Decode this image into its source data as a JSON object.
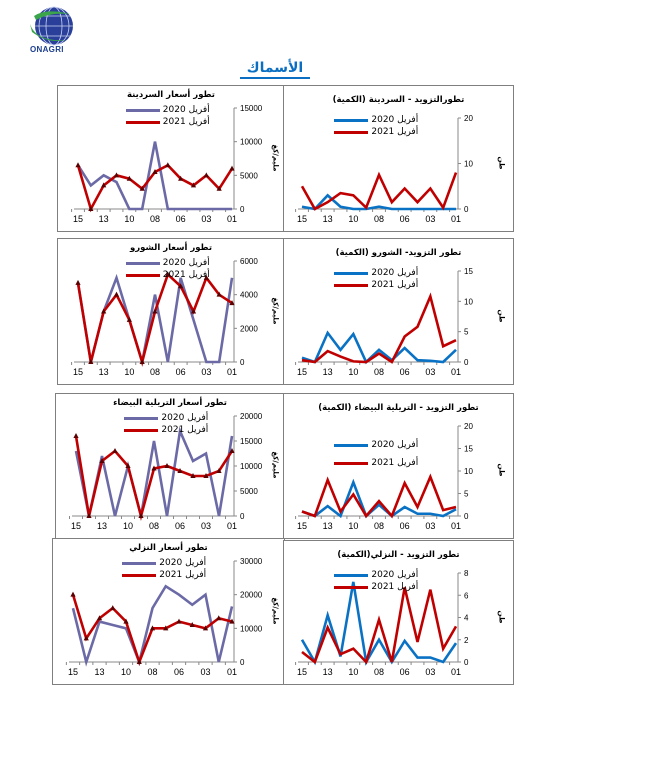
{
  "header": {
    "logo_text": "ONAGRI",
    "section_title": "الأسماك"
  },
  "colors": {
    "price_2020": "#6b6aa6",
    "qty_2020": "#0a72c4",
    "y2021": "#c00000",
    "title": "#0a6fc2"
  },
  "chart_data": [
    {
      "type": "line",
      "title": "تطور أسعار السردينة",
      "ylabel": "مليم/كغ",
      "ylim": [
        0,
        15000
      ],
      "yticks": [
        0,
        5000,
        10000,
        15000
      ],
      "categories": [
        "15",
        "",
        "13",
        "",
        "10",
        "",
        "08",
        "",
        "06",
        "",
        "03",
        "",
        "01"
      ],
      "series": [
        {
          "name": "أفريل 2020",
          "color": "#6b6aa6",
          "marker": "none",
          "values": [
            6500,
            3500,
            5000,
            4000,
            0,
            0,
            10000,
            0,
            0,
            0,
            0,
            0,
            0
          ]
        },
        {
          "name": "أفريل 2021",
          "color": "#c00000",
          "marker": "triangle",
          "values": [
            6500,
            0,
            3500,
            5000,
            4500,
            3000,
            5500,
            6500,
            4500,
            3500,
            5000,
            3000,
            6000
          ]
        }
      ]
    },
    {
      "type": "line",
      "title": "تطورالتزويد - السردينة (الكمية)",
      "ylabel": "طن",
      "ylim": [
        0,
        20
      ],
      "yticks": [
        0,
        10,
        20
      ],
      "categories": [
        "15",
        "",
        "13",
        "",
        "10",
        "",
        "08",
        "",
        "06",
        "",
        "03",
        "",
        "01"
      ],
      "series": [
        {
          "name": "أفريل 2020",
          "color": "#0a72c4",
          "marker": "none",
          "values": [
            0.5,
            0,
            3,
            0.5,
            0,
            0,
            0.5,
            0,
            0,
            0,
            0,
            0,
            0
          ]
        },
        {
          "name": "أفريل 2021",
          "color": "#c00000",
          "marker": "none",
          "values": [
            5,
            0,
            1.5,
            3.5,
            3,
            0.3,
            7.5,
            1.5,
            4.5,
            1.5,
            4.5,
            0.3,
            8
          ]
        }
      ]
    },
    {
      "type": "line",
      "title": "تطور أسعار الشورو",
      "ylabel": "مليم/كغ",
      "ylim": [
        0,
        6000
      ],
      "yticks": [
        0,
        2000,
        4000,
        6000
      ],
      "categories": [
        "15",
        "",
        "13",
        "",
        "10",
        "",
        "08",
        "",
        "06",
        "",
        "03",
        "",
        "01"
      ],
      "series": [
        {
          "name": "أفريل 2020",
          "color": "#6b6aa6",
          "marker": "none",
          "values": [
            4700,
            0,
            3000,
            5000,
            2500,
            0,
            4000,
            0,
            5000,
            2500,
            0,
            0,
            5000
          ]
        },
        {
          "name": "أفريل 2021",
          "color": "#c00000",
          "marker": "triangle",
          "values": [
            4700,
            0,
            3000,
            4000,
            2500,
            0,
            3000,
            5200,
            4500,
            3000,
            5000,
            4000,
            3500
          ]
        }
      ]
    },
    {
      "type": "line",
      "title": "تطور التزويد- الشورو (الكمية)",
      "ylabel": "طن",
      "ylim": [
        0,
        15
      ],
      "yticks": [
        0,
        5,
        10,
        15
      ],
      "categories": [
        "15",
        "",
        "13",
        "",
        "10",
        "",
        "08",
        "",
        "06",
        "",
        "03",
        "",
        "01"
      ],
      "series": [
        {
          "name": "أفريل 2020",
          "color": "#0a72c4",
          "marker": "none",
          "values": [
            0.7,
            0,
            4.8,
            2,
            4.6,
            0,
            2,
            0.3,
            2.3,
            0.3,
            0.2,
            0,
            2
          ]
        },
        {
          "name": "أفريل 2021",
          "color": "#c00000",
          "marker": "none",
          "values": [
            0.3,
            0,
            1.8,
            0.9,
            0.1,
            0,
            1.4,
            0,
            4.2,
            5.8,
            10.8,
            2.6,
            3.6
          ]
        }
      ]
    },
    {
      "type": "line",
      "title": "تطور أسعار التريلية البيضاء",
      "ylabel": "مليم/كغ",
      "ylim": [
        0,
        20000
      ],
      "yticks": [
        0,
        5000,
        10000,
        15000,
        20000
      ],
      "categories": [
        "15",
        "",
        "13",
        "",
        "10",
        "",
        "08",
        "",
        "06",
        "",
        "03",
        "",
        "01"
      ],
      "series": [
        {
          "name": "أفريل 2020",
          "color": "#6b6aa6",
          "marker": "none",
          "values": [
            13000,
            0,
            12000,
            0,
            10000,
            0,
            15000,
            0,
            17000,
            11000,
            12500,
            0,
            16000
          ]
        },
        {
          "name": "أفريل 2021",
          "color": "#c00000",
          "marker": "triangle",
          "values": [
            16000,
            0,
            11000,
            13000,
            10000,
            0,
            9500,
            10000,
            9000,
            8000,
            8000,
            9000,
            13000
          ]
        }
      ]
    },
    {
      "type": "line",
      "title": "تطور التزويد - التريلية البيضاء (الكمية)",
      "ylabel": "طن",
      "ylim": [
        0,
        20
      ],
      "yticks": [
        0,
        5,
        10,
        15,
        20
      ],
      "categories": [
        "15",
        "",
        "13",
        "",
        "10",
        "",
        "08",
        "",
        "06",
        "",
        "03",
        "",
        "01"
      ],
      "series": [
        {
          "name": "أفريل 2020",
          "color": "#0a72c4",
          "marker": "none",
          "values": [
            1,
            0,
            2.2,
            0,
            7.5,
            0,
            2.5,
            0,
            2,
            0.5,
            0.5,
            0,
            1.5
          ]
        },
        {
          "name": "أفريل 2021",
          "color": "#c00000",
          "marker": "none",
          "values": [
            1,
            0,
            8,
            1,
            4.8,
            0,
            3.3,
            0,
            7.3,
            2,
            8.7,
            1.3,
            2
          ]
        }
      ]
    },
    {
      "type": "line",
      "title": "تطور أسعار النزلي",
      "ylabel": "مليم/كغ",
      "ylim": [
        0,
        30000
      ],
      "yticks": [
        0,
        10000,
        20000,
        30000
      ],
      "categories": [
        "15",
        "",
        "13",
        "",
        "10",
        "",
        "08",
        "",
        "06",
        "",
        "03",
        "",
        "01"
      ],
      "series": [
        {
          "name": "أفريل 2020",
          "color": "#6b6aa6",
          "marker": "none",
          "values": [
            16000,
            0,
            12000,
            11000,
            10000,
            0,
            16000,
            22500,
            20000,
            17000,
            20000,
            0,
            16500
          ]
        },
        {
          "name": "أفريل 2021",
          "color": "#c00000",
          "marker": "triangle",
          "values": [
            20000,
            7000,
            13000,
            16000,
            12000,
            0,
            10000,
            10000,
            12000,
            11000,
            10000,
            13000,
            12000
          ]
        }
      ]
    },
    {
      "type": "line",
      "title": "تطور التزويد - النزلي(الكمية)",
      "ylabel": "طن",
      "ylim": [
        0,
        8
      ],
      "yticks": [
        0,
        2,
        4,
        6,
        8
      ],
      "categories": [
        "15",
        "",
        "13",
        "",
        "10",
        "",
        "08",
        "",
        "06",
        "",
        "03",
        "",
        "01"
      ],
      "series": [
        {
          "name": "أفريل 2020",
          "color": "#0a72c4",
          "marker": "none",
          "values": [
            2,
            0,
            4.2,
            0.5,
            7.2,
            0,
            2,
            0,
            1.9,
            0.4,
            0.4,
            0,
            1.7
          ]
        },
        {
          "name": "أفريل 2021",
          "color": "#c00000",
          "marker": "none",
          "values": [
            0.9,
            0,
            3.1,
            0.7,
            1.2,
            0,
            3.8,
            0,
            6.7,
            1.8,
            6.5,
            1.2,
            3.2
          ]
        }
      ]
    }
  ]
}
